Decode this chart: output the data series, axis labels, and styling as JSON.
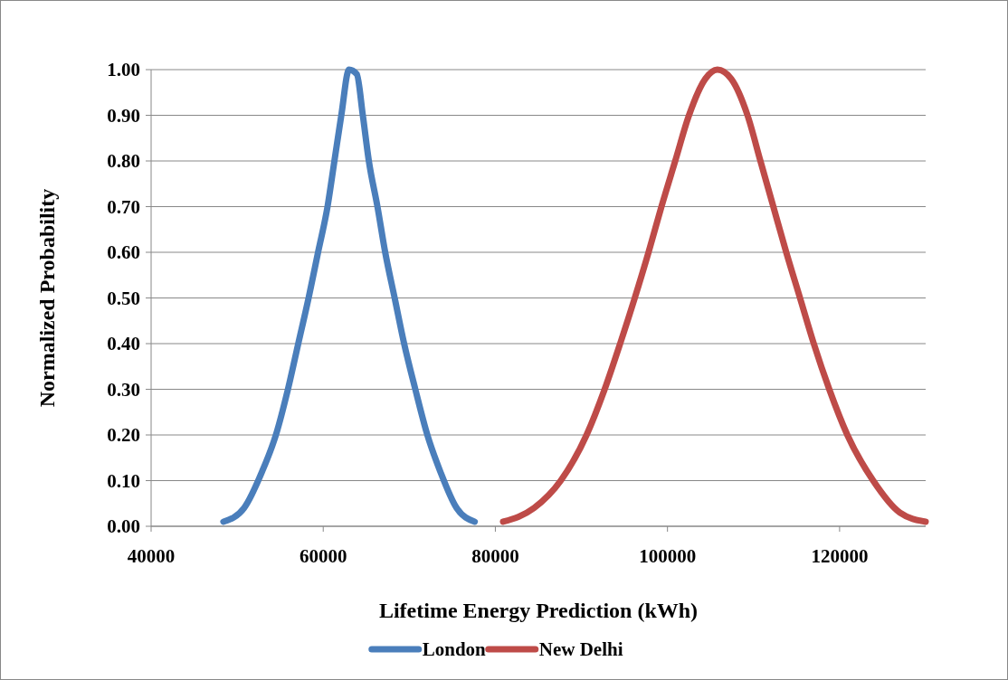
{
  "chart_data": {
    "type": "line",
    "xlabel": "Lifetime Energy Prediction (kWh)",
    "ylabel": "Normalized Probability",
    "xlim": [
      40000,
      130000
    ],
    "xticks": [
      40000,
      60000,
      80000,
      100000,
      120000
    ],
    "ylim": [
      0,
      1
    ],
    "yticks": [
      {
        "value": 0,
        "label": "0.00"
      },
      {
        "value": 0.1,
        "label": "0.10"
      },
      {
        "value": 0.2,
        "label": "0.20"
      },
      {
        "value": 0.3,
        "label": "0.30"
      },
      {
        "value": 0.4,
        "label": "0.40"
      },
      {
        "value": 0.5,
        "label": "0.50"
      },
      {
        "value": 0.6,
        "label": "0.60"
      },
      {
        "value": 0.7,
        "label": "0.70"
      },
      {
        "value": 0.8,
        "label": "0.80"
      },
      {
        "value": 0.9,
        "label": "0.90"
      },
      {
        "value": 1,
        "label": "1.00"
      }
    ],
    "grid": "y",
    "legend": "bottom",
    "marker": "none",
    "line_style": "solid",
    "series": [
      {
        "name": "London",
        "color": "#4a7ebb",
        "x": [
          48400,
          50800,
          52900,
          54500,
          55900,
          57100,
          58300,
          59400,
          60500,
          61300,
          62100,
          63000,
          63900,
          64600,
          65300,
          66300,
          67200,
          68300,
          69400,
          70700,
          72100,
          73600,
          75500,
          77600
        ],
        "values": [
          0.01,
          0.04,
          0.12,
          0.2,
          0.3,
          0.4,
          0.5,
          0.6,
          0.7,
          0.8,
          0.9,
          1.0,
          0.99,
          0.9,
          0.8,
          0.7,
          0.6,
          0.5,
          0.4,
          0.3,
          0.2,
          0.12,
          0.04,
          0.01
        ]
      },
      {
        "name": "New Delhi",
        "color": "#be4b48",
        "x": [
          80900,
          84500,
          87600,
          90600,
          92700,
          94500,
          96200,
          97800,
          99300,
          100900,
          102500,
          104400,
          105800,
          107400,
          109300,
          110800,
          112300,
          113800,
          115400,
          117000,
          118800,
          120900,
          123900,
          127000,
          130000
        ],
        "values": [
          0.01,
          0.04,
          0.1,
          0.2,
          0.3,
          0.4,
          0.5,
          0.6,
          0.7,
          0.8,
          0.9,
          0.98,
          1.0,
          0.98,
          0.9,
          0.8,
          0.7,
          0.6,
          0.5,
          0.4,
          0.3,
          0.2,
          0.1,
          0.03,
          0.01
        ]
      }
    ]
  }
}
